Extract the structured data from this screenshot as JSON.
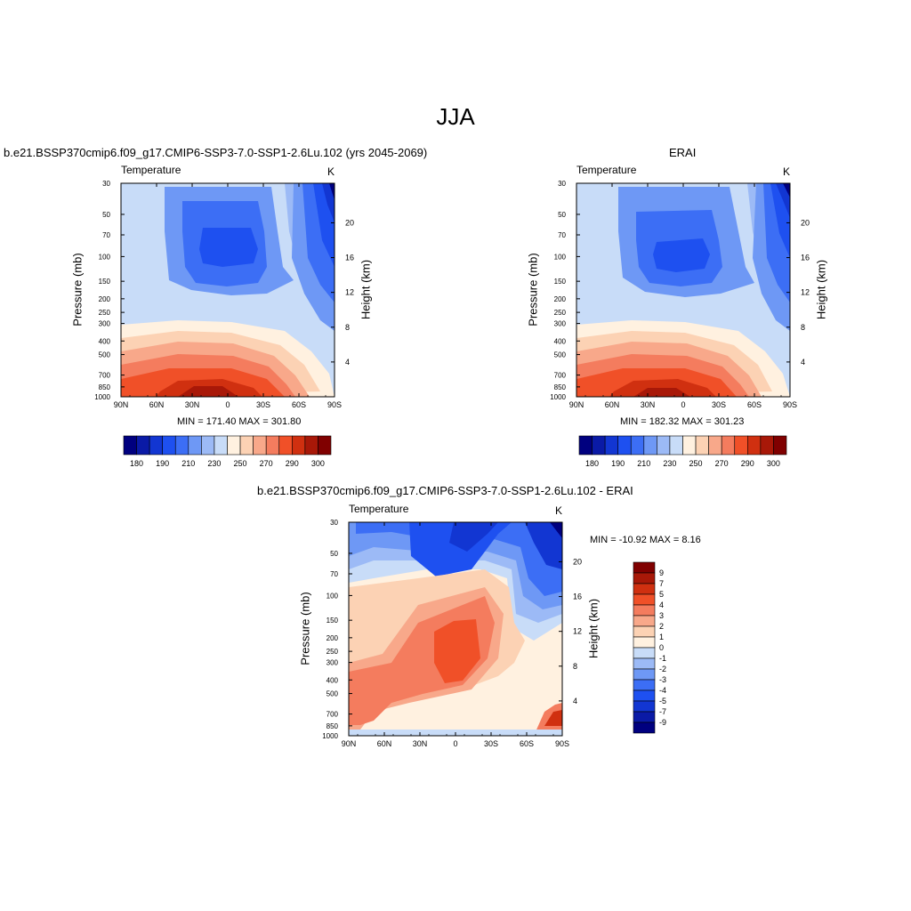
{
  "page": {
    "title": "JJA"
  },
  "colors": {
    "abs_levels": [
      "#00007f",
      "#0a1aa6",
      "#1236d2",
      "#1e50f0",
      "#3c6ef5",
      "#6e98f5",
      "#9cbaf6",
      "#c8dcf8",
      "#fff1e0",
      "#fcd2b4",
      "#f8a88a",
      "#f47c5e",
      "#f05028",
      "#d03010",
      "#a81808",
      "#800000"
    ],
    "diff_levels": [
      "#00007f",
      "#0a1aa6",
      "#1236d2",
      "#1e50f0",
      "#3c6ef5",
      "#6e98f5",
      "#9cbaf6",
      "#c8dcf8",
      "#fff1e0",
      "#fcd2b4",
      "#f8a88a",
      "#f47c5e",
      "#f05028",
      "#d03010",
      "#a81808",
      "#800000"
    ]
  },
  "chart_data": [
    {
      "type": "heatmap",
      "title": "b.e21.BSSP370cmip6.f09_g17.CMIP6-SSP3-7.0-SSP1-2.6Lu.102 (yrs 2045-2069)",
      "subtitle_left": "Temperature",
      "subtitle_right": "K",
      "ylabel": "Pressure (mb)",
      "ylabel_right": "Height (km)",
      "x_ticks": [
        "90N",
        "60N",
        "30N",
        "0",
        "30S",
        "60S",
        "90S"
      ],
      "y_ticks": [
        "30",
        "50",
        "70",
        "100",
        "150",
        "200",
        "250",
        "300",
        "400",
        "500",
        "700",
        "850",
        "1000"
      ],
      "y_right_ticks": [
        "20",
        "16",
        "12",
        "8",
        "4"
      ],
      "minmax": "MIN = 171.40  MAX = 301.80",
      "colorbar_labels": [
        "180",
        "190",
        "210",
        "230",
        "250",
        "270",
        "290",
        "300"
      ],
      "xlim": [
        90,
        -90
      ],
      "ylim": [
        1000,
        30
      ]
    },
    {
      "type": "heatmap",
      "title": "ERAI",
      "subtitle_left": "Temperature",
      "subtitle_right": "K",
      "ylabel": "Pressure (mb)",
      "ylabel_right": "Height (km)",
      "x_ticks": [
        "90N",
        "60N",
        "30N",
        "0",
        "30S",
        "60S",
        "90S"
      ],
      "y_ticks": [
        "30",
        "50",
        "70",
        "100",
        "150",
        "200",
        "250",
        "300",
        "400",
        "500",
        "700",
        "850",
        "1000"
      ],
      "y_right_ticks": [
        "20",
        "16",
        "12",
        "8",
        "4"
      ],
      "minmax": "MIN = 182.32  MAX = 301.23",
      "colorbar_labels": [
        "180",
        "190",
        "210",
        "230",
        "250",
        "270",
        "290",
        "300"
      ],
      "xlim": [
        90,
        -90
      ],
      "ylim": [
        1000,
        30
      ]
    },
    {
      "type": "heatmap",
      "title": "b.e21.BSSP370cmip6.f09_g17.CMIP6-SSP3-7.0-SSP1-2.6Lu.102 - ERAI",
      "subtitle_left": "Temperature",
      "subtitle_right": "K",
      "ylabel": "Pressure (mb)",
      "ylabel_right": "Height (km)",
      "x_ticks": [
        "90N",
        "60N",
        "30N",
        "0",
        "30S",
        "60S",
        "90S"
      ],
      "y_ticks": [
        "30",
        "50",
        "70",
        "100",
        "150",
        "200",
        "250",
        "300",
        "400",
        "500",
        "700",
        "850",
        "1000"
      ],
      "y_right_ticks": [
        "20",
        "16",
        "12",
        "8",
        "4"
      ],
      "minmax": "MIN = -10.92  MAX =   8.16",
      "colorbar_labels": [
        "9",
        "7",
        "5",
        "4",
        "3",
        "2",
        "1",
        "0",
        "-1",
        "-2",
        "-3",
        "-4",
        "-5",
        "-7",
        "-9"
      ],
      "xlim": [
        90,
        -90
      ],
      "ylim": [
        1000,
        30
      ]
    }
  ]
}
